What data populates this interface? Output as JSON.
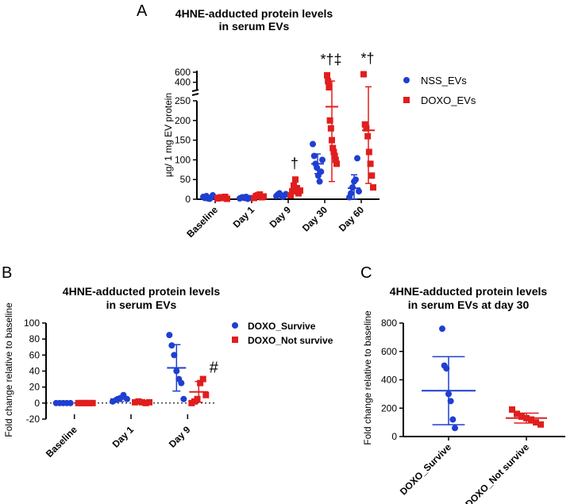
{
  "colors": {
    "blue": "#1f3fd1",
    "red": "#e01e1e",
    "axis": "#000000"
  },
  "chart_data": [
    {
      "id": "A",
      "type": "scatter",
      "panel_label": "A",
      "title_line1": "4HNE-adducted protein levels",
      "title_line2": "in serum EVs",
      "ylabel": "µg/ 1 mg EV protein",
      "categories": [
        "Baseline",
        "Day 1",
        "Day 9",
        "Day 30",
        "Day 60"
      ],
      "yticks_lower": [
        "0",
        "50",
        "100",
        "150",
        "200",
        "250"
      ],
      "yticks_upper": [
        "400",
        "600"
      ],
      "ylim_lower": [
        0,
        250
      ],
      "ylim_upper": [
        300,
        600
      ],
      "legend": [
        "NSS_EVs",
        "DOXO_EVs"
      ],
      "annotations": [
        "",
        "",
        "†",
        "*†‡",
        "*†"
      ],
      "series": [
        {
          "name": "NSS_EVs",
          "points": [
            [
              6,
              3,
              8,
              2,
              1,
              4,
              10
            ],
            [
              2,
              4,
              5,
              3,
              6,
              1,
              3
            ],
            [
              8,
              12,
              15,
              10,
              6,
              9,
              13
            ],
            [
              140,
              110,
              90,
              80,
              60,
              45,
              70,
              100
            ],
            [
              5,
              15,
              30,
              45,
              50,
              104,
              20
            ]
          ],
          "means": [
            4,
            3,
            10,
            90,
            28
          ],
          "sds": [
            4,
            2,
            4,
            25,
            34
          ]
        },
        {
          "name": "DOXO_EVs",
          "points": [
            [
              2,
              4,
              5,
              3,
              6,
              1
            ],
            [
              3,
              8,
              10,
              12,
              5,
              7
            ],
            [
              10,
              20,
              35,
              50,
              28,
              15,
              22
            ],
            [
              540,
              420,
              300,
              200,
              180,
              150,
              130,
              120,
              110,
              100,
              90
            ],
            [
              560,
              190,
              180,
              160,
              120,
              90,
              60,
              30
            ]
          ],
          "means": [
            3,
            6,
            25,
            235,
            175
          ],
          "sds": [
            2,
            4,
            10,
            190,
            135
          ]
        }
      ]
    },
    {
      "id": "B",
      "type": "scatter",
      "panel_label": "B",
      "title_line1": "4HNE-adducted protein levels",
      "title_line2": "in serum EVs",
      "ylabel": "Fold change relative to baseline",
      "categories": [
        "Baseline",
        "Day 1",
        "Day 9"
      ],
      "yticks": [
        "-20",
        "0",
        "20",
        "40",
        "60",
        "80",
        "100"
      ],
      "ylim": [
        -20,
        100
      ],
      "legend": [
        "DOXO_Survive",
        "DOXO_Not survive"
      ],
      "annotations": [
        "",
        "",
        "#"
      ],
      "series": [
        {
          "name": "DOXO_Survive",
          "points": [
            [
              0,
              0,
              0,
              0,
              0
            ],
            [
              2,
              4,
              6,
              10,
              5
            ],
            [
              85,
              72,
              60,
              40,
              30,
              25,
              5
            ]
          ],
          "means": [
            0,
            5,
            44
          ],
          "sds": [
            0.5,
            3,
            29
          ]
        },
        {
          "name": "DOXO_Not survive",
          "points": [
            [
              0,
              0,
              0,
              0,
              0
            ],
            [
              1,
              2,
              1,
              0,
              1
            ],
            [
              0,
              2,
              5,
              25,
              30,
              10
            ]
          ],
          "means": [
            0,
            1,
            14
          ],
          "sds": [
            0.5,
            1,
            13
          ]
        }
      ]
    },
    {
      "id": "C",
      "type": "scatter",
      "panel_label": "C",
      "title_line1": "4HNE-adducted protein levels",
      "title_line2": "in serum EVs at day 30",
      "ylabel": "Fold change relative to baseline",
      "categories": [
        "DOXO_Survive",
        "DOXO_Not survive"
      ],
      "yticks": [
        "0",
        "200",
        "400",
        "600",
        "800"
      ],
      "ylim": [
        0,
        800
      ],
      "series": [
        {
          "name": "DOXO_Survive",
          "points": [
            760,
            500,
            480,
            300,
            250,
            120,
            60
          ],
          "mean": 323,
          "sd": 240
        },
        {
          "name": "DOXO_Not survive",
          "points": [
            190,
            160,
            140,
            130,
            120,
            100,
            85
          ],
          "mean": 130,
          "sd": 35
        }
      ]
    }
  ]
}
